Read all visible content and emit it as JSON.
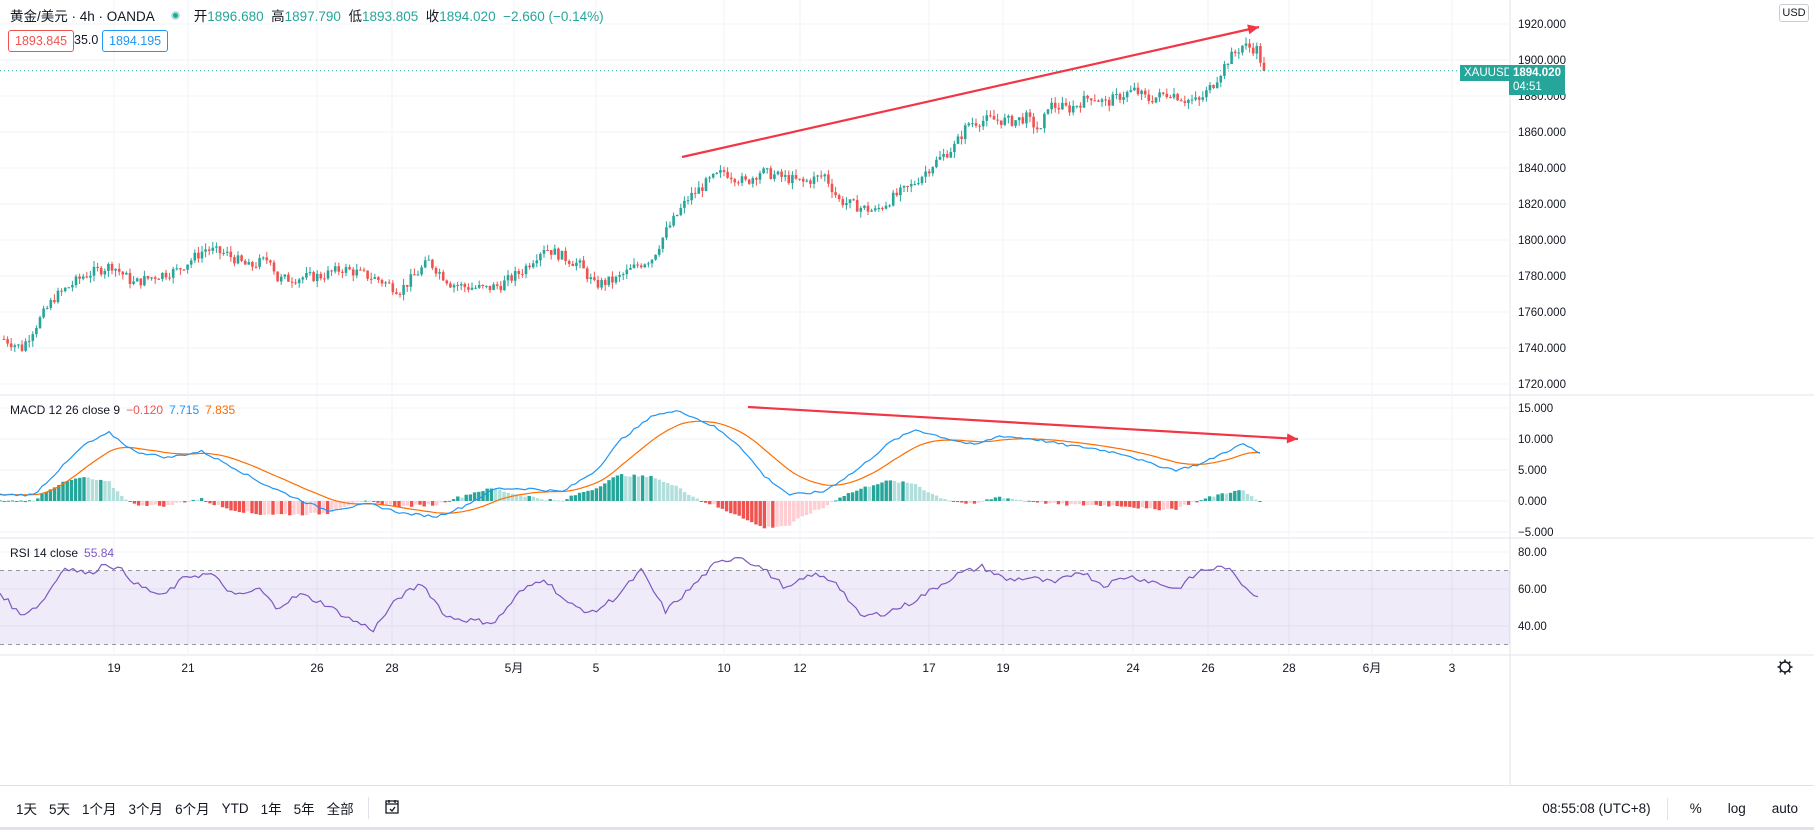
{
  "legend": {
    "symbol": "黄金/美元 · 4h · OANDA",
    "open_label": "开",
    "open": "1896.680",
    "high_label": "高",
    "high": "1897.790",
    "low_label": "低",
    "low": "1893.805",
    "close_label": "收",
    "close": "1894.020",
    "change": "−2.660 (−0.14%)",
    "sell_price": "1893.845",
    "spread": "35.0",
    "buy_price": "1894.195"
  },
  "price_axis": {
    "currency": "USD",
    "ticks": [
      "1920.000",
      "1900.000",
      "1880.000",
      "1860.000",
      "1840.000",
      "1820.000",
      "1800.000",
      "1780.000",
      "1760.000",
      "1740.000",
      "1720.000"
    ],
    "symbol_tag": "XAUUSD",
    "last_price": "1894.020",
    "countdown": "04:51"
  },
  "macd": {
    "label": "MACD 12 26 close 9",
    "hist": "−0.120",
    "macd": "7.715",
    "signal": "7.835",
    "ticks": [
      "15.000",
      "10.000",
      "5.000",
      "0.000",
      "−5.000"
    ]
  },
  "rsi": {
    "label": "RSI 14 close",
    "value": "55.84",
    "ticks": [
      "80.00",
      "60.00",
      "40.00"
    ]
  },
  "time_axis": {
    "ticks": [
      "19",
      "21",
      "26",
      "28",
      "5月",
      "5",
      "10",
      "12",
      "17",
      "19",
      "24",
      "26",
      "28",
      "6月",
      "3"
    ]
  },
  "toolbar": {
    "ranges": [
      "1天",
      "5天",
      "1个月",
      "3个月",
      "6个月",
      "YTD",
      "1年",
      "5年",
      "全部"
    ],
    "clock": "08:55:08 (UTC+8)",
    "percent": "%",
    "log": "log",
    "auto": "auto"
  },
  "colors": {
    "up": "#26a69a",
    "down": "#ef5350",
    "macd_line": "#2196f3",
    "signal_line": "#ff6d00",
    "rsi_line": "#7e57c2",
    "trend_arrow": "#f23645"
  },
  "chart_data": {
    "type": "candlestick",
    "symbol": "XAUUSD",
    "timeframe": "4h",
    "price_ylim": [
      1720,
      1920
    ],
    "anchors": [
      [
        0,
        1745
      ],
      [
        5,
        1740
      ],
      [
        8,
        1750
      ],
      [
        14,
        1768
      ],
      [
        22,
        1780
      ],
      [
        30,
        1786
      ],
      [
        36,
        1776
      ],
      [
        42,
        1780
      ],
      [
        48,
        1783
      ],
      [
        56,
        1795
      ],
      [
        62,
        1792
      ],
      [
        68,
        1785
      ],
      [
        74,
        1790
      ],
      [
        76,
        1778
      ],
      [
        82,
        1779
      ],
      [
        88,
        1780
      ],
      [
        94,
        1784
      ],
      [
        98,
        1782
      ],
      [
        104,
        1778
      ],
      [
        110,
        1772
      ],
      [
        114,
        1780
      ],
      [
        118,
        1788
      ],
      [
        124,
        1776
      ],
      [
        128,
        1774
      ],
      [
        134,
        1773
      ],
      [
        138,
        1775
      ],
      [
        144,
        1783
      ],
      [
        150,
        1796
      ],
      [
        156,
        1790
      ],
      [
        160,
        1786
      ],
      [
        164,
        1775
      ],
      [
        170,
        1778
      ],
      [
        176,
        1786
      ],
      [
        180,
        1790
      ],
      [
        184,
        1805
      ],
      [
        190,
        1823
      ],
      [
        196,
        1833
      ],
      [
        200,
        1838
      ],
      [
        206,
        1832
      ],
      [
        210,
        1838
      ],
      [
        216,
        1835
      ],
      [
        222,
        1832
      ],
      [
        228,
        1836
      ],
      [
        232,
        1822
      ],
      [
        238,
        1818
      ],
      [
        242,
        1816
      ],
      [
        248,
        1825
      ],
      [
        252,
        1830
      ],
      [
        258,
        1842
      ],
      [
        264,
        1852
      ],
      [
        268,
        1865
      ],
      [
        274,
        1867
      ],
      [
        280,
        1866
      ],
      [
        284,
        1868
      ],
      [
        288,
        1860
      ],
      [
        290,
        1875
      ],
      [
        296,
        1873
      ],
      [
        302,
        1880
      ],
      [
        306,
        1876
      ],
      [
        310,
        1880
      ],
      [
        314,
        1883
      ],
      [
        318,
        1878
      ],
      [
        324,
        1882
      ],
      [
        328,
        1878
      ],
      [
        332,
        1877
      ],
      [
        336,
        1887
      ],
      [
        340,
        1900
      ],
      [
        344,
        1908
      ],
      [
        348,
        1906
      ],
      [
        350,
        1894
      ]
    ],
    "macd_anchors": [
      [
        0,
        1
      ],
      [
        8,
        1
      ],
      [
        14,
        5
      ],
      [
        20,
        9
      ],
      [
        26,
        11
      ],
      [
        32,
        8
      ],
      [
        40,
        7
      ],
      [
        48,
        8
      ],
      [
        54,
        6
      ],
      [
        62,
        3
      ],
      [
        72,
        0
      ],
      [
        78,
        -1.5
      ],
      [
        88,
        -0.5
      ],
      [
        96,
        -2
      ],
      [
        104,
        -2.5
      ],
      [
        110,
        -1
      ],
      [
        118,
        2
      ],
      [
        126,
        2
      ],
      [
        134,
        1.5
      ],
      [
        142,
        5
      ],
      [
        148,
        10
      ],
      [
        156,
        14
      ],
      [
        162,
        14.5
      ],
      [
        170,
        12
      ],
      [
        176,
        9
      ],
      [
        182,
        4
      ],
      [
        188,
        1
      ],
      [
        196,
        1.5
      ],
      [
        204,
        5
      ],
      [
        212,
        9.5
      ],
      [
        218,
        11.5
      ],
      [
        226,
        10
      ],
      [
        232,
        9
      ],
      [
        238,
        10.5
      ],
      [
        246,
        10
      ],
      [
        254,
        9
      ],
      [
        260,
        8.5
      ],
      [
        268,
        7.5
      ],
      [
        274,
        6
      ],
      [
        280,
        5
      ],
      [
        286,
        6
      ],
      [
        292,
        8
      ],
      [
        296,
        9.2
      ],
      [
        300,
        7.7
      ]
    ],
    "rsi_anchors": [
      [
        0,
        58
      ],
      [
        5,
        46
      ],
      [
        10,
        52
      ],
      [
        16,
        72
      ],
      [
        22,
        68
      ],
      [
        26,
        74
      ],
      [
        30,
        70
      ],
      [
        34,
        62
      ],
      [
        40,
        56
      ],
      [
        46,
        67
      ],
      [
        52,
        68
      ],
      [
        58,
        56
      ],
      [
        64,
        60
      ],
      [
        68,
        50
      ],
      [
        74,
        57
      ],
      [
        80,
        52
      ],
      [
        86,
        44
      ],
      [
        92,
        38
      ],
      [
        98,
        55
      ],
      [
        104,
        63
      ],
      [
        110,
        45
      ],
      [
        116,
        43
      ],
      [
        122,
        42
      ],
      [
        128,
        58
      ],
      [
        134,
        66
      ],
      [
        140,
        52
      ],
      [
        146,
        47
      ],
      [
        152,
        56
      ],
      [
        158,
        70
      ],
      [
        164,
        48
      ],
      [
        170,
        60
      ],
      [
        176,
        73
      ],
      [
        182,
        78
      ],
      [
        188,
        71
      ],
      [
        194,
        60
      ],
      [
        200,
        68
      ],
      [
        206,
        64
      ],
      [
        212,
        45
      ],
      [
        218,
        47
      ],
      [
        224,
        52
      ],
      [
        230,
        60
      ],
      [
        236,
        68
      ],
      [
        242,
        72
      ],
      [
        248,
        65
      ],
      [
        254,
        66
      ],
      [
        260,
        63
      ],
      [
        266,
        70
      ],
      [
        272,
        62
      ],
      [
        278,
        67
      ],
      [
        284,
        64
      ],
      [
        290,
        60
      ],
      [
        296,
        70
      ],
      [
        302,
        72
      ],
      [
        306,
        63
      ],
      [
        310,
        56
      ]
    ]
  }
}
